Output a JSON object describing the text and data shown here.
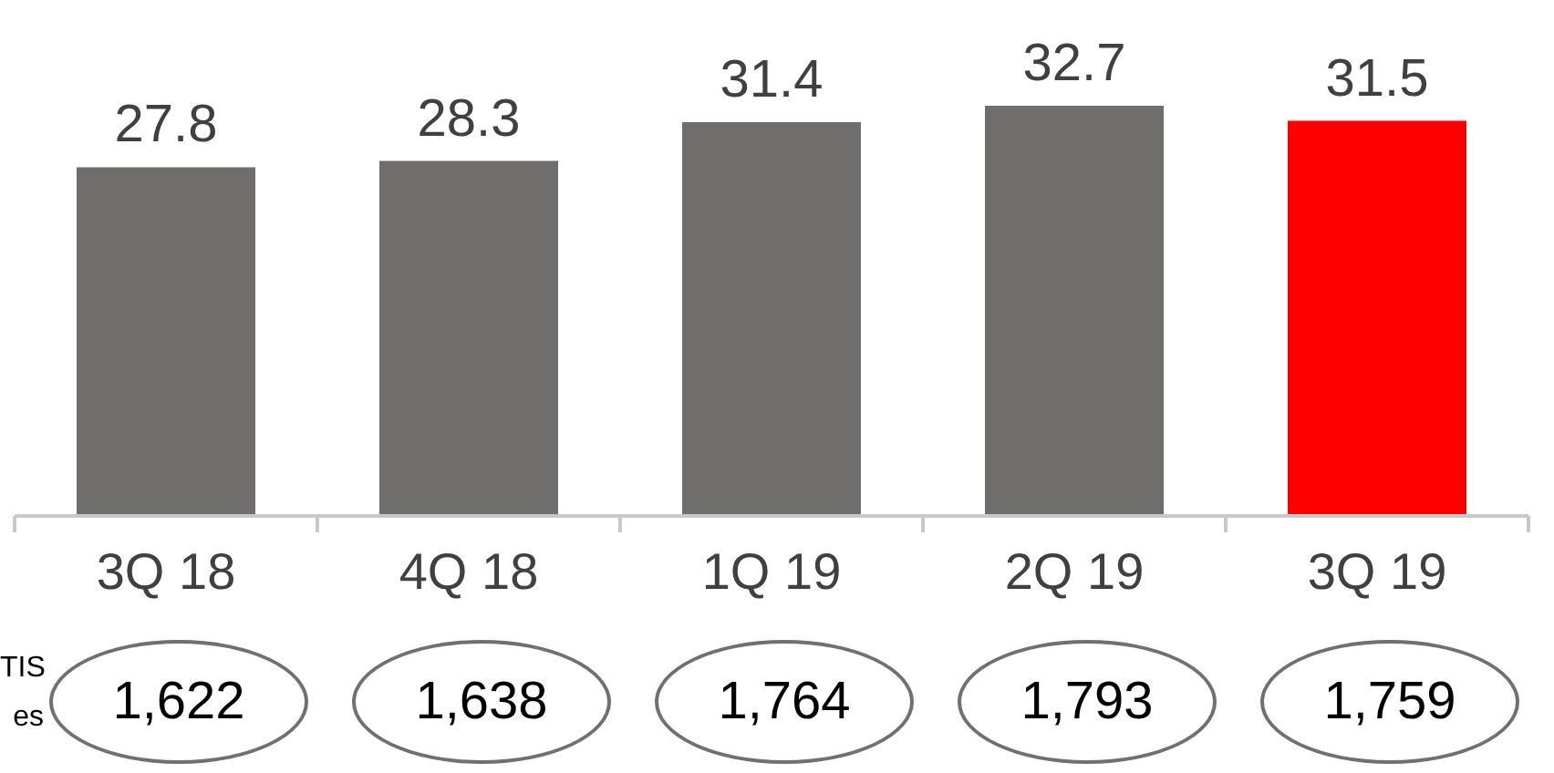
{
  "chart_data": {
    "type": "bar",
    "categories": [
      "3Q 18",
      "4Q 18",
      "1Q 19",
      "2Q 19",
      "3Q 19"
    ],
    "values": [
      27.8,
      28.3,
      31.4,
      32.7,
      31.5
    ],
    "colors": [
      "#6f6e6d",
      "#6f6e6d",
      "#6f6e6d",
      "#6f6e6d",
      "#ff0000"
    ],
    "data_labels": true,
    "grid": false,
    "legend": false,
    "tick_labels": "x",
    "annotations": [
      "TIS",
      "es",
      "1,622",
      "1,638",
      "1,764",
      "1,793",
      "1,759"
    ]
  }
}
